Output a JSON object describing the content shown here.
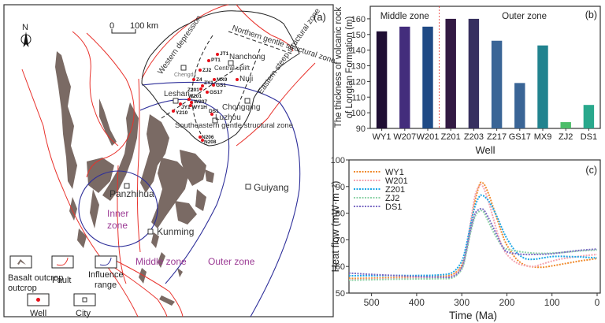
{
  "map": {
    "panel_label": "(a)",
    "north_label": "N",
    "scale": {
      "zero": "0",
      "distance": "100 km"
    },
    "cities": [
      {
        "name": "Chengdu"
      },
      {
        "name": "Nanchong"
      },
      {
        "name": "Leshan"
      },
      {
        "name": "Chongqing"
      },
      {
        "name": "Luzhou"
      },
      {
        "name": "Panzhihua"
      },
      {
        "name": "Kunming"
      },
      {
        "name": "Guiyang"
      }
    ],
    "wells": [
      "JT1",
      "PT1",
      "ZJ2",
      "Z4",
      "ZY1",
      "MX9",
      "GS1",
      "Z201",
      "GS17",
      "W201",
      "W207",
      "JY1",
      "WY1H",
      "Y210",
      "DS1",
      "N206",
      "N208"
    ],
    "places": [
      "Nuji"
    ],
    "structural_zones": [
      "Northern gentle structural zone",
      "Western depression",
      "Central uplift",
      "Eastern steep structural zone",
      "Southeastern gentle structural zone"
    ],
    "zones": {
      "inner": "Inner zone",
      "middle": "Middle zone",
      "outer": "Outer zone"
    },
    "legend": {
      "basalt": "Basalt outcrop",
      "fault": "Fault",
      "influence": "Influence range",
      "well": "Well",
      "city": "City"
    },
    "colors": {
      "basalt": "#7a6a64",
      "fault": "#e8322c",
      "influence": "#2e2f9a",
      "well": "#e8101a",
      "zone_label": "#9b3a94",
      "structural": "#222222"
    }
  },
  "chart_data": [
    {
      "panel_label": "(b)",
      "type": "bar",
      "title": "",
      "xlabel": "Well",
      "ylabel": "The thickness of volcanic rock of Longtan Formation (m)",
      "ylabel_lines": [
        "The thickness of volcanic rock",
        "of Longtan Formation (m)"
      ],
      "categories": [
        "WY1",
        "W207",
        "W201",
        "Z201",
        "Z203",
        "Z217",
        "GS17",
        "MX9",
        "ZJ2",
        "DS1"
      ],
      "values": [
        152,
        155,
        155,
        160,
        160,
        146,
        119,
        143,
        94,
        105
      ],
      "colors": [
        "#1f0e33",
        "#432d7c",
        "#1f4a85",
        "#321a43",
        "#37305f",
        "#3a6596",
        "#3a6596",
        "#21838f",
        "#4dbe6a",
        "#29a88c"
      ],
      "ylim": [
        90,
        168
      ],
      "yticks": [
        90,
        100,
        110,
        120,
        130,
        140,
        150,
        160
      ],
      "groups": [
        {
          "label": "Middle zone",
          "categories": [
            "WY1",
            "W207",
            "W201"
          ]
        },
        {
          "label": "Outer zone",
          "categories": [
            "Z201",
            "Z203",
            "Z217",
            "GS17",
            "MX9",
            "ZJ2",
            "DS1"
          ]
        }
      ],
      "divider_after": "W201",
      "grid": false
    },
    {
      "panel_label": "(c)",
      "type": "line",
      "title": "",
      "xlabel": "Time (Ma)",
      "ylabel": "Heat flow (mW·m⁻²)",
      "xlim": [
        550,
        0
      ],
      "ylim": [
        50,
        100
      ],
      "xticks": [
        500,
        400,
        300,
        200,
        100,
        0
      ],
      "yticks": [
        50,
        60,
        70,
        80,
        90,
        100
      ],
      "legend_position": "top-left",
      "grid": false,
      "x": [
        550,
        500,
        450,
        400,
        350,
        320,
        300,
        290,
        280,
        270,
        260,
        255,
        250,
        240,
        230,
        220,
        210,
        200,
        180,
        160,
        140,
        120,
        100,
        80,
        60,
        40,
        20,
        0
      ],
      "series": [
        {
          "name": "WY1",
          "color": "#f08a2c",
          "values": [
            55.5,
            55.6,
            55.8,
            56.0,
            56.2,
            57.0,
            60.5,
            66,
            75,
            85,
            91,
            91.3,
            90.8,
            87,
            82,
            77,
            72,
            68,
            63,
            60.5,
            59.8,
            59.7,
            60.2,
            60.8,
            61.4,
            62.0,
            62.5,
            63.0
          ]
        },
        {
          "name": "W201",
          "color": "#f4a4b0",
          "values": [
            55.0,
            55.2,
            55.4,
            55.6,
            55.8,
            56.5,
            60.0,
            66,
            77,
            87,
            90.5,
            90.3,
            89,
            84,
            78,
            72,
            67.5,
            64.5,
            61.5,
            60.3,
            60.0,
            61.0,
            62.0,
            62.8,
            63.3,
            63.8,
            64.2,
            64.5
          ]
        },
        {
          "name": "Z201",
          "color": "#1ea7e6",
          "values": [
            56.5,
            56.5,
            56.6,
            56.6,
            56.8,
            57.8,
            62.0,
            68,
            76,
            83,
            86.5,
            86.6,
            86.3,
            84.5,
            81.5,
            78,
            74,
            70.5,
            65.5,
            63.0,
            62.7,
            63.2,
            63.7,
            63.8,
            63.7,
            63.6,
            63.4,
            63.2
          ]
        },
        {
          "name": "ZJ2",
          "color": "#8fd3a8",
          "values": [
            54.8,
            55.0,
            55.2,
            55.3,
            55.4,
            55.8,
            59.0,
            65,
            73,
            79,
            80.8,
            80.9,
            80.0,
            76.5,
            73,
            70,
            67.5,
            66.5,
            65.8,
            65.3,
            65.0,
            64.9,
            65.0,
            65.2,
            65.5,
            65.8,
            66.0,
            66.2
          ]
        },
        {
          "name": "DS1",
          "color": "#7c6cc4",
          "values": [
            57.5,
            57.0,
            56.6,
            56.2,
            56.0,
            56.2,
            59.5,
            66,
            74,
            80,
            81.5,
            81.6,
            81.0,
            78,
            74.5,
            71,
            67.5,
            65.5,
            64.8,
            64.5,
            64.5,
            64.6,
            64.8,
            65.2,
            65.6,
            66.0,
            66.3,
            66.5
          ]
        }
      ]
    }
  ]
}
